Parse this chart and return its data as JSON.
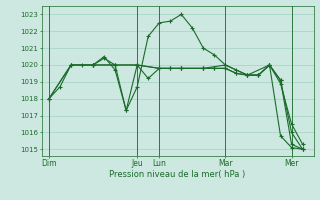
{
  "background_color": "#cce8e0",
  "grid_color": "#99ccbb",
  "line_color": "#1a6b2a",
  "ylabel_ticks": [
    1015,
    1016,
    1017,
    1018,
    1019,
    1020,
    1021,
    1022,
    1023
  ],
  "ylim": [
    1014.6,
    1023.5
  ],
  "xlabel": "Pression niveau de la mer( hPa )",
  "day_labels": [
    "Dim",
    "Jeu",
    "Lun",
    "Mar",
    "Mer"
  ],
  "day_positions": [
    0,
    36,
    45,
    72,
    99
  ],
  "xlim": [
    -3,
    108
  ],
  "vlines": [
    0,
    36,
    45,
    72,
    99
  ],
  "series1_x": [
    0,
    4.5,
    9,
    13.5,
    18,
    22.5,
    27,
    31.5,
    36,
    40.5,
    45,
    49.5,
    54,
    58.5,
    63,
    67.5,
    72,
    76.5,
    81,
    85.5,
    90,
    94.5,
    99,
    103.5
  ],
  "series1_y": [
    1018.0,
    1018.7,
    1020.0,
    1020.0,
    1020.0,
    1020.5,
    1019.7,
    1017.3,
    1018.7,
    1021.7,
    1022.5,
    1022.6,
    1023.0,
    1022.2,
    1021.0,
    1020.6,
    1020.0,
    1019.7,
    1019.4,
    1019.4,
    1020.0,
    1018.9,
    1016.5,
    1015.3
  ],
  "series2_x": [
    0,
    9,
    18,
    27,
    31.5,
    36,
    40.5,
    45,
    49.5,
    54,
    63,
    67.5,
    72,
    76.5,
    81,
    85.5,
    90,
    94.5,
    99,
    103.5
  ],
  "series2_y": [
    1018.0,
    1020.0,
    1020.0,
    1020.0,
    1017.3,
    1020.0,
    1019.2,
    1019.8,
    1019.8,
    1019.8,
    1019.8,
    1019.8,
    1019.8,
    1019.5,
    1019.4,
    1019.4,
    1020.0,
    1019.1,
    1015.3,
    1015.0
  ],
  "series3_x": [
    0,
    9,
    18,
    22.5,
    27,
    36,
    45,
    49.5,
    54,
    63,
    67.5,
    72,
    76.5,
    81,
    85.5,
    90,
    94.5,
    99,
    103.5
  ],
  "series3_y": [
    1018.0,
    1020.0,
    1020.0,
    1020.4,
    1020.0,
    1020.0,
    1019.8,
    1019.8,
    1019.8,
    1019.8,
    1019.8,
    1019.8,
    1019.5,
    1019.4,
    1019.4,
    1020.0,
    1019.1,
    1016.0,
    1015.0
  ],
  "series4_x": [
    18,
    27,
    36,
    45,
    54,
    63,
    72,
    81,
    90,
    94.5,
    99,
    103.5
  ],
  "series4_y": [
    1020.0,
    1020.0,
    1020.0,
    1019.8,
    1019.8,
    1019.8,
    1020.0,
    1019.4,
    1020.0,
    1015.8,
    1015.1,
    1015.0
  ]
}
